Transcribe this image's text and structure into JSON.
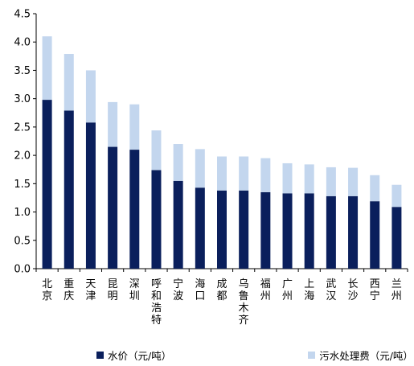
{
  "chart_data": {
    "type": "bar",
    "stacked": true,
    "categories": [
      "北京",
      "重庆",
      "天津",
      "昆明",
      "深圳",
      "呼和浩特",
      "宁波",
      "海口",
      "成都",
      "乌鲁木齐",
      "福州",
      "广州",
      "上海",
      "武汉",
      "长沙",
      "西宁",
      "兰州"
    ],
    "series": [
      {
        "name": "水价（元/吨）",
        "color": "#0a1f5c",
        "values": [
          2.98,
          2.79,
          2.58,
          2.15,
          2.1,
          1.74,
          1.55,
          1.43,
          1.38,
          1.38,
          1.35,
          1.33,
          1.33,
          1.28,
          1.28,
          1.19,
          1.09
        ]
      },
      {
        "name": "污水处理费（元/吨）",
        "color": "#c3d6ee",
        "values": [
          1.12,
          1.0,
          0.92,
          0.79,
          0.8,
          0.7,
          0.65,
          0.68,
          0.6,
          0.6,
          0.6,
          0.53,
          0.51,
          0.51,
          0.5,
          0.46,
          0.39
        ]
      }
    ],
    "ylim": [
      0,
      4.5
    ],
    "yticks": [
      "0.0",
      "0.5",
      "1.0",
      "1.5",
      "2.0",
      "2.5",
      "3.0",
      "3.5",
      "4.0",
      "4.5"
    ],
    "xlabel": "",
    "ylabel": "",
    "grid": false,
    "legend_position": "bottom"
  }
}
